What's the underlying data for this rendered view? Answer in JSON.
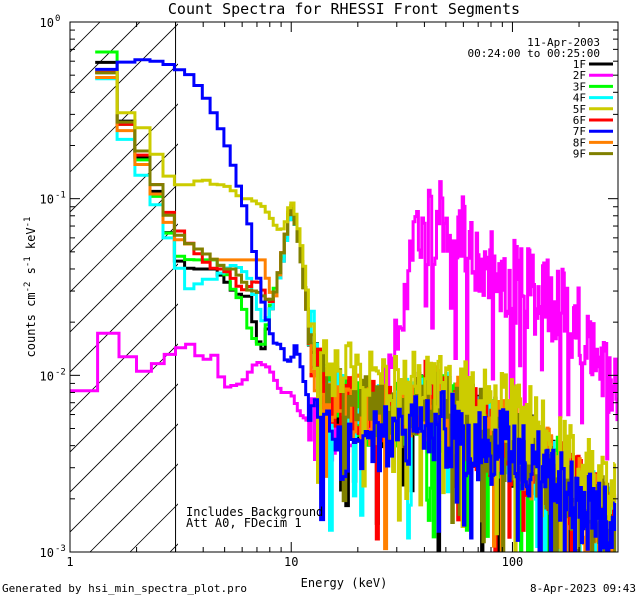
{
  "chart_data": {
    "type": "line",
    "title": "Count Spectra for RHESSI Front Segments",
    "date": "11-Apr-2003",
    "time_range": "00:24:00 to 00:25:00",
    "xlabel": "Energy (keV)",
    "ylabel": "counts cm^-2 s^-1 keV^-1",
    "xscale": "log",
    "yscale": "log",
    "xlim": [
      1.0,
      300.0
    ],
    "ylim": [
      0.001,
      1.0
    ],
    "x_ticks": [
      {
        "value": 1,
        "label": "1"
      },
      {
        "value": 10,
        "label": "10"
      },
      {
        "value": 100,
        "label": "100"
      }
    ],
    "y_ticks": [
      {
        "value": 1,
        "label": "10",
        "exp": "0"
      },
      {
        "value": 0.1,
        "label": "10",
        "exp": "-1"
      },
      {
        "value": 0.01,
        "label": "10",
        "exp": "-2"
      },
      {
        "value": 0.001,
        "label": "10",
        "exp": "-3"
      }
    ],
    "hatched_region": {
      "x_from": 1.0,
      "x_to": 3.0
    },
    "annotations": [
      "Includes Background",
      "Att A0, FDecim 1"
    ],
    "legend_position": "top-right",
    "series": [
      {
        "name": "1F",
        "color": "#000000",
        "seed": 11,
        "x": [
          1.3,
          1.5,
          1.7,
          2.0,
          2.3,
          2.6,
          3.0,
          3.5,
          4.0,
          4.5,
          5.0,
          5.5,
          6.0,
          6.5,
          7.0,
          7.5,
          8.0,
          8.5,
          9.0,
          9.5,
          10.0,
          10.5,
          11.0,
          11.5,
          12.0,
          13.0,
          14.0,
          15.0,
          17.0,
          20.0,
          25.0,
          30.0,
          35.0,
          40.0,
          45.0,
          50.0,
          60.0,
          70.0,
          80.0,
          90.0,
          100.0,
          120.0,
          140.0,
          160.0,
          180.0,
          200.0,
          230.0,
          260.0,
          290.0
        ],
        "y": [
          0.78,
          0.55,
          0.32,
          0.2,
          0.14,
          0.09,
          0.046,
          0.04,
          0.04,
          0.04,
          0.035,
          0.03,
          0.028,
          0.028,
          0.016,
          0.014,
          0.022,
          0.03,
          0.04,
          0.06,
          0.09,
          0.07,
          0.05,
          0.03,
          0.02,
          0.012,
          0.009,
          0.008,
          0.007,
          0.0065,
          0.006,
          0.006,
          0.0065,
          0.007,
          0.0065,
          0.006,
          0.0055,
          0.005,
          0.0045,
          0.0042,
          0.004,
          0.0035,
          0.003,
          0.0026,
          0.0022,
          0.002,
          0.0018,
          0.0015,
          0.0012
        ]
      },
      {
        "name": "2F",
        "color": "#ff00ff",
        "seed": 22,
        "x": [
          1.0,
          1.15,
          1.3,
          1.6,
          2.0,
          2.6,
          3.0,
          3.5,
          4.0,
          4.5,
          5.0,
          6.0,
          7.0,
          8.0,
          9.0,
          10.0,
          11.0,
          12.0,
          13.0,
          14.0,
          16.0,
          18.0,
          20.0,
          22.0,
          25.0,
          28.0,
          30.0,
          33.0,
          36.0,
          40.0,
          45.0,
          50.0,
          60.0,
          70.0,
          80.0,
          100.0,
          120.0,
          150.0,
          180.0,
          200.0,
          230.0,
          260.0,
          280.0,
          300.0
        ],
        "y": [
          0.007,
          0.008,
          0.016,
          0.018,
          0.01,
          0.012,
          0.014,
          0.015,
          0.012,
          0.013,
          0.0085,
          0.009,
          0.012,
          0.011,
          0.008,
          0.008,
          0.006,
          0.0055,
          0.005,
          0.0045,
          0.0055,
          0.005,
          0.0048,
          0.0055,
          0.007,
          0.012,
          0.02,
          0.03,
          0.05,
          0.065,
          0.075,
          0.07,
          0.06,
          0.05,
          0.042,
          0.035,
          0.03,
          0.026,
          0.022,
          0.02,
          0.017,
          0.012,
          0.009,
          0.007
        ]
      },
      {
        "name": "3F",
        "color": "#00ff00",
        "seed": 33,
        "x": [
          1.3,
          1.5,
          1.7,
          2.0,
          2.3,
          2.6,
          3.0,
          3.5,
          4.0,
          4.5,
          5.0,
          5.5,
          6.0,
          6.5,
          7.0,
          7.5,
          8.0,
          8.5,
          9.0,
          9.5,
          10.0,
          10.5,
          11.0,
          11.5,
          12.0,
          13.0,
          14.0,
          15.0,
          17.0,
          20.0,
          25.0,
          30.0,
          35.0,
          40.0,
          45.0,
          50.0,
          60.0,
          70.0,
          80.0,
          90.0,
          100.0,
          120.0,
          140.0,
          160.0,
          180.0,
          200.0,
          230.0,
          260.0,
          290.0
        ],
        "y": [
          0.95,
          0.62,
          0.3,
          0.2,
          0.13,
          0.085,
          0.048,
          0.045,
          0.045,
          0.045,
          0.04,
          0.03,
          0.026,
          0.018,
          0.015,
          0.015,
          0.023,
          0.032,
          0.042,
          0.065,
          0.1,
          0.07,
          0.05,
          0.03,
          0.02,
          0.012,
          0.009,
          0.008,
          0.007,
          0.0065,
          0.006,
          0.006,
          0.0065,
          0.007,
          0.0065,
          0.006,
          0.0055,
          0.005,
          0.0045,
          0.0042,
          0.004,
          0.0035,
          0.003,
          0.0026,
          0.0022,
          0.002,
          0.0018,
          0.0015,
          0.0012
        ]
      },
      {
        "name": "4F",
        "color": "#00ffff",
        "seed": 44,
        "x": [
          1.3,
          1.5,
          1.7,
          2.0,
          2.3,
          2.6,
          3.0,
          3.5,
          4.0,
          4.5,
          5.0,
          5.5,
          6.0,
          6.5,
          7.0,
          7.5,
          8.0,
          8.5,
          9.0,
          9.5,
          10.0,
          10.5,
          11.0,
          11.5,
          12.0,
          13.0,
          14.0,
          15.0,
          17.0,
          20.0,
          25.0,
          30.0,
          35.0,
          40.0,
          45.0,
          50.0,
          60.0,
          70.0,
          80.0,
          90.0,
          100.0,
          120.0,
          140.0,
          160.0,
          180.0,
          200.0,
          230.0,
          260.0,
          290.0
        ],
        "y": [
          0.6,
          0.45,
          0.25,
          0.16,
          0.11,
          0.08,
          0.045,
          0.03,
          0.035,
          0.035,
          0.04,
          0.042,
          0.04,
          0.035,
          0.025,
          0.02,
          0.022,
          0.03,
          0.04,
          0.06,
          0.09,
          0.07,
          0.05,
          0.03,
          0.02,
          0.012,
          0.009,
          0.008,
          0.007,
          0.0065,
          0.006,
          0.006,
          0.0065,
          0.007,
          0.0065,
          0.006,
          0.0055,
          0.005,
          0.0045,
          0.0042,
          0.004,
          0.0035,
          0.003,
          0.0026,
          0.0022,
          0.002,
          0.0018,
          0.0015,
          0.0012
        ]
      },
      {
        "name": "5F",
        "color": "#cccc00",
        "seed": 55,
        "x": [
          1.3,
          1.5,
          1.7,
          2.0,
          2.3,
          2.6,
          3.0,
          3.5,
          4.0,
          4.5,
          5.0,
          5.5,
          6.0,
          6.5,
          7.0,
          7.5,
          8.0,
          8.5,
          9.0,
          9.5,
          10.0,
          10.5,
          11.0,
          11.5,
          12.0,
          13.0,
          14.0,
          15.0,
          17.0,
          20.0,
          25.0,
          30.0,
          35.0,
          40.0,
          45.0,
          50.0,
          60.0,
          70.0,
          80.0,
          90.0,
          100.0,
          120.0,
          140.0,
          160.0,
          180.0,
          200.0,
          230.0,
          260.0,
          290.0
        ],
        "y": [
          0.72,
          0.5,
          0.32,
          0.28,
          0.22,
          0.15,
          0.12,
          0.12,
          0.13,
          0.12,
          0.12,
          0.11,
          0.1,
          0.1,
          0.095,
          0.09,
          0.08,
          0.07,
          0.065,
          0.075,
          0.1,
          0.08,
          0.06,
          0.04,
          0.025,
          0.016,
          0.013,
          0.011,
          0.01,
          0.0095,
          0.009,
          0.009,
          0.0095,
          0.01,
          0.0095,
          0.009,
          0.008,
          0.007,
          0.0065,
          0.006,
          0.0055,
          0.005,
          0.0045,
          0.004,
          0.0035,
          0.003,
          0.0026,
          0.0022,
          0.002
        ]
      },
      {
        "name": "6F",
        "color": "#ff0000",
        "seed": 66,
        "x": [
          1.3,
          1.5,
          1.7,
          2.0,
          2.3,
          2.6,
          3.0,
          3.5,
          4.0,
          4.5,
          5.0,
          5.5,
          6.0,
          6.5,
          7.0,
          7.5,
          8.0,
          8.5,
          9.0,
          9.5,
          10.0,
          10.5,
          11.0,
          11.5,
          12.0,
          13.0,
          14.0,
          15.0,
          17.0,
          20.0,
          25.0,
          30.0,
          35.0,
          40.0,
          45.0,
          50.0,
          60.0,
          70.0,
          80.0,
          90.0,
          100.0,
          120.0,
          140.0,
          160.0,
          180.0,
          200.0,
          230.0,
          260.0,
          290.0
        ],
        "y": [
          0.7,
          0.48,
          0.3,
          0.2,
          0.15,
          0.1,
          0.07,
          0.055,
          0.045,
          0.04,
          0.04,
          0.035,
          0.03,
          0.032,
          0.035,
          0.03,
          0.025,
          0.03,
          0.045,
          0.065,
          0.095,
          0.07,
          0.05,
          0.03,
          0.02,
          0.012,
          0.009,
          0.008,
          0.007,
          0.0065,
          0.006,
          0.006,
          0.0065,
          0.007,
          0.0065,
          0.006,
          0.0055,
          0.005,
          0.0045,
          0.0042,
          0.004,
          0.0035,
          0.003,
          0.0026,
          0.0022,
          0.002,
          0.0018,
          0.0015,
          0.0012
        ]
      },
      {
        "name": "7F",
        "color": "#0000ff",
        "seed": 77,
        "x": [
          1.3,
          1.5,
          1.7,
          2.0,
          2.3,
          2.6,
          3.0,
          3.5,
          4.0,
          4.5,
          5.0,
          5.5,
          6.0,
          6.5,
          7.0,
          7.5,
          8.0,
          8.5,
          9.0,
          9.5,
          10.0,
          10.5,
          11.0,
          11.5,
          12.0,
          13.0,
          14.0,
          15.0,
          17.0,
          20.0,
          25.0,
          30.0,
          35.0,
          40.0,
          45.0,
          50.0,
          60.0,
          70.0,
          80.0,
          90.0,
          100.0,
          120.0,
          140.0,
          160.0,
          180.0,
          200.0,
          230.0,
          260.0,
          290.0
        ],
        "y": [
          0.5,
          0.55,
          0.58,
          0.62,
          0.6,
          0.6,
          0.55,
          0.5,
          0.4,
          0.3,
          0.22,
          0.15,
          0.1,
          0.07,
          0.04,
          0.025,
          0.018,
          0.015,
          0.015,
          0.012,
          0.012,
          0.015,
          0.012,
          0.009,
          0.007,
          0.006,
          0.005,
          0.0045,
          0.004,
          0.004,
          0.0042,
          0.0045,
          0.0048,
          0.005,
          0.005,
          0.0048,
          0.0045,
          0.0042,
          0.004,
          0.0038,
          0.0035,
          0.003,
          0.0027,
          0.0024,
          0.0021,
          0.0019,
          0.0016,
          0.0014,
          0.0012
        ]
      },
      {
        "name": "8F",
        "color": "#ff8000",
        "seed": 88,
        "x": [
          1.3,
          1.5,
          1.7,
          2.0,
          2.3,
          2.6,
          3.0,
          3.5,
          4.0,
          4.5,
          5.0,
          5.5,
          6.0,
          6.5,
          7.0,
          7.5,
          8.0,
          8.5,
          9.0,
          9.5,
          10.0,
          10.5,
          11.0,
          11.5,
          12.0,
          13.0,
          14.0,
          15.0,
          17.0,
          20.0,
          25.0,
          30.0,
          35.0,
          40.0,
          45.0,
          50.0,
          60.0,
          70.0,
          80.0,
          90.0,
          100.0,
          120.0,
          140.0,
          160.0,
          180.0,
          200.0,
          230.0,
          260.0,
          290.0
        ],
        "y": [
          0.65,
          0.45,
          0.28,
          0.18,
          0.13,
          0.09,
          0.06,
          0.055,
          0.05,
          0.045,
          0.045,
          0.045,
          0.045,
          0.045,
          0.045,
          0.045,
          0.03,
          0.028,
          0.045,
          0.065,
          0.1,
          0.07,
          0.05,
          0.03,
          0.02,
          0.012,
          0.009,
          0.008,
          0.007,
          0.0065,
          0.006,
          0.006,
          0.0065,
          0.007,
          0.0065,
          0.006,
          0.0055,
          0.005,
          0.0045,
          0.0042,
          0.004,
          0.0035,
          0.003,
          0.0026,
          0.0022,
          0.002,
          0.0018,
          0.0015,
          0.0012
        ]
      },
      {
        "name": "9F",
        "color": "#808000",
        "seed": 99,
        "x": [
          1.3,
          1.5,
          1.7,
          2.0,
          2.3,
          2.6,
          3.0,
          3.5,
          4.0,
          4.5,
          5.0,
          5.5,
          6.0,
          6.5,
          7.0,
          7.5,
          8.0,
          8.5,
          9.0,
          9.5,
          10.0,
          10.5,
          11.0,
          11.5,
          12.0,
          13.0,
          14.0,
          15.0,
          17.0,
          20.0,
          25.0,
          30.0,
          35.0,
          40.0,
          45.0,
          50.0,
          60.0,
          70.0,
          80.0,
          90.0,
          100.0,
          120.0,
          140.0,
          160.0,
          180.0,
          200.0,
          230.0,
          260.0,
          290.0
        ],
        "y": [
          0.68,
          0.48,
          0.3,
          0.22,
          0.15,
          0.1,
          0.065,
          0.055,
          0.05,
          0.045,
          0.04,
          0.04,
          0.035,
          0.03,
          0.03,
          0.028,
          0.026,
          0.03,
          0.045,
          0.065,
          0.095,
          0.07,
          0.05,
          0.03,
          0.02,
          0.012,
          0.009,
          0.008,
          0.007,
          0.0065,
          0.006,
          0.006,
          0.0065,
          0.007,
          0.0065,
          0.006,
          0.0055,
          0.005,
          0.0045,
          0.0042,
          0.004,
          0.0035,
          0.003,
          0.0026,
          0.0022,
          0.002,
          0.0018,
          0.0015,
          0.0012
        ]
      }
    ]
  },
  "footer": {
    "left": "Generated by hsi_min_spectra_plot.pro",
    "right": "8-Apr-2023 09:43"
  },
  "colors": {
    "background": "#ffffff",
    "axes": "#000000"
  }
}
